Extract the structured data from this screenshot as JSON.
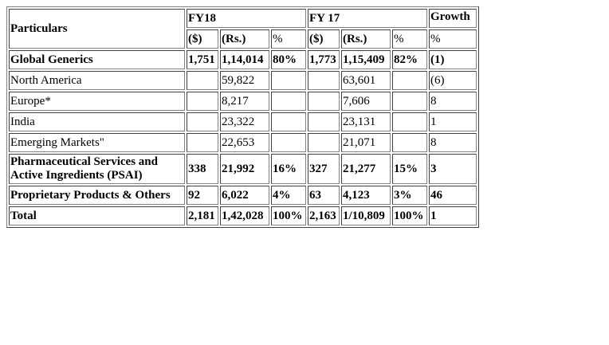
{
  "header": {
    "particulars": "Particulars",
    "fy18": "FY18",
    "fy17": "FY 17",
    "growth": "Growth",
    "unit_dollar": "($)",
    "unit_rs": "(Rs.)",
    "unit_percent": "%",
    "growth_unit": "%"
  },
  "rows": [
    {
      "label": "Global Generics",
      "fy18_usd": "1,751",
      "fy18_rs": "1,14,014",
      "fy18_pct": "80%",
      "fy17_usd": "1,773",
      "fy17_rs": "1,15,409",
      "fy17_pct": "82%",
      "growth": "(1)"
    },
    {
      "label": "North America",
      "fy18_usd": "",
      "fy18_rs": "59,822",
      "fy18_pct": "",
      "fy17_usd": "",
      "fy17_rs": "63,601",
      "fy17_pct": "",
      "growth": "(6)"
    },
    {
      "label": "Europe*",
      "fy18_usd": "",
      "fy18_rs": "8,217",
      "fy18_pct": "",
      "fy17_usd": "",
      "fy17_rs": "7,606",
      "fy17_pct": "",
      "growth": "8"
    },
    {
      "label": "India",
      "fy18_usd": "",
      "fy18_rs": "23,322",
      "fy18_pct": "",
      "fy17_usd": "",
      "fy17_rs": "23,131",
      "fy17_pct": "",
      "growth": "1"
    },
    {
      "label": "Emerging Markets\"",
      "fy18_usd": "",
      "fy18_rs": "22,653",
      "fy18_pct": "",
      "fy17_usd": "",
      "fy17_rs": "21,071",
      "fy17_pct": "",
      "growth": "8"
    },
    {
      "label": "Pharmaceutical Services and Active Ingredients (PSAI)",
      "fy18_usd": "338",
      "fy18_rs": "21,992",
      "fy18_pct": "16%",
      "fy17_usd": "327",
      "fy17_rs": "21,277",
      "fy17_pct": "15%",
      "growth": "3"
    },
    {
      "label": "Proprietary Products & Others",
      "fy18_usd": "92",
      "fy18_rs": "6,022",
      "fy18_pct": "4%",
      "fy17_usd": "63",
      "fy17_rs": "4,123",
      "fy17_pct": "3%",
      "growth": "46"
    },
    {
      "label": "Total",
      "fy18_usd": "2,181",
      "fy18_rs": "1,42,028",
      "fy18_pct": "100%",
      "fy17_usd": "2,163",
      "fy17_rs": "1/10,809",
      "fy17_pct": "100%",
      "growth": "1"
    }
  ]
}
